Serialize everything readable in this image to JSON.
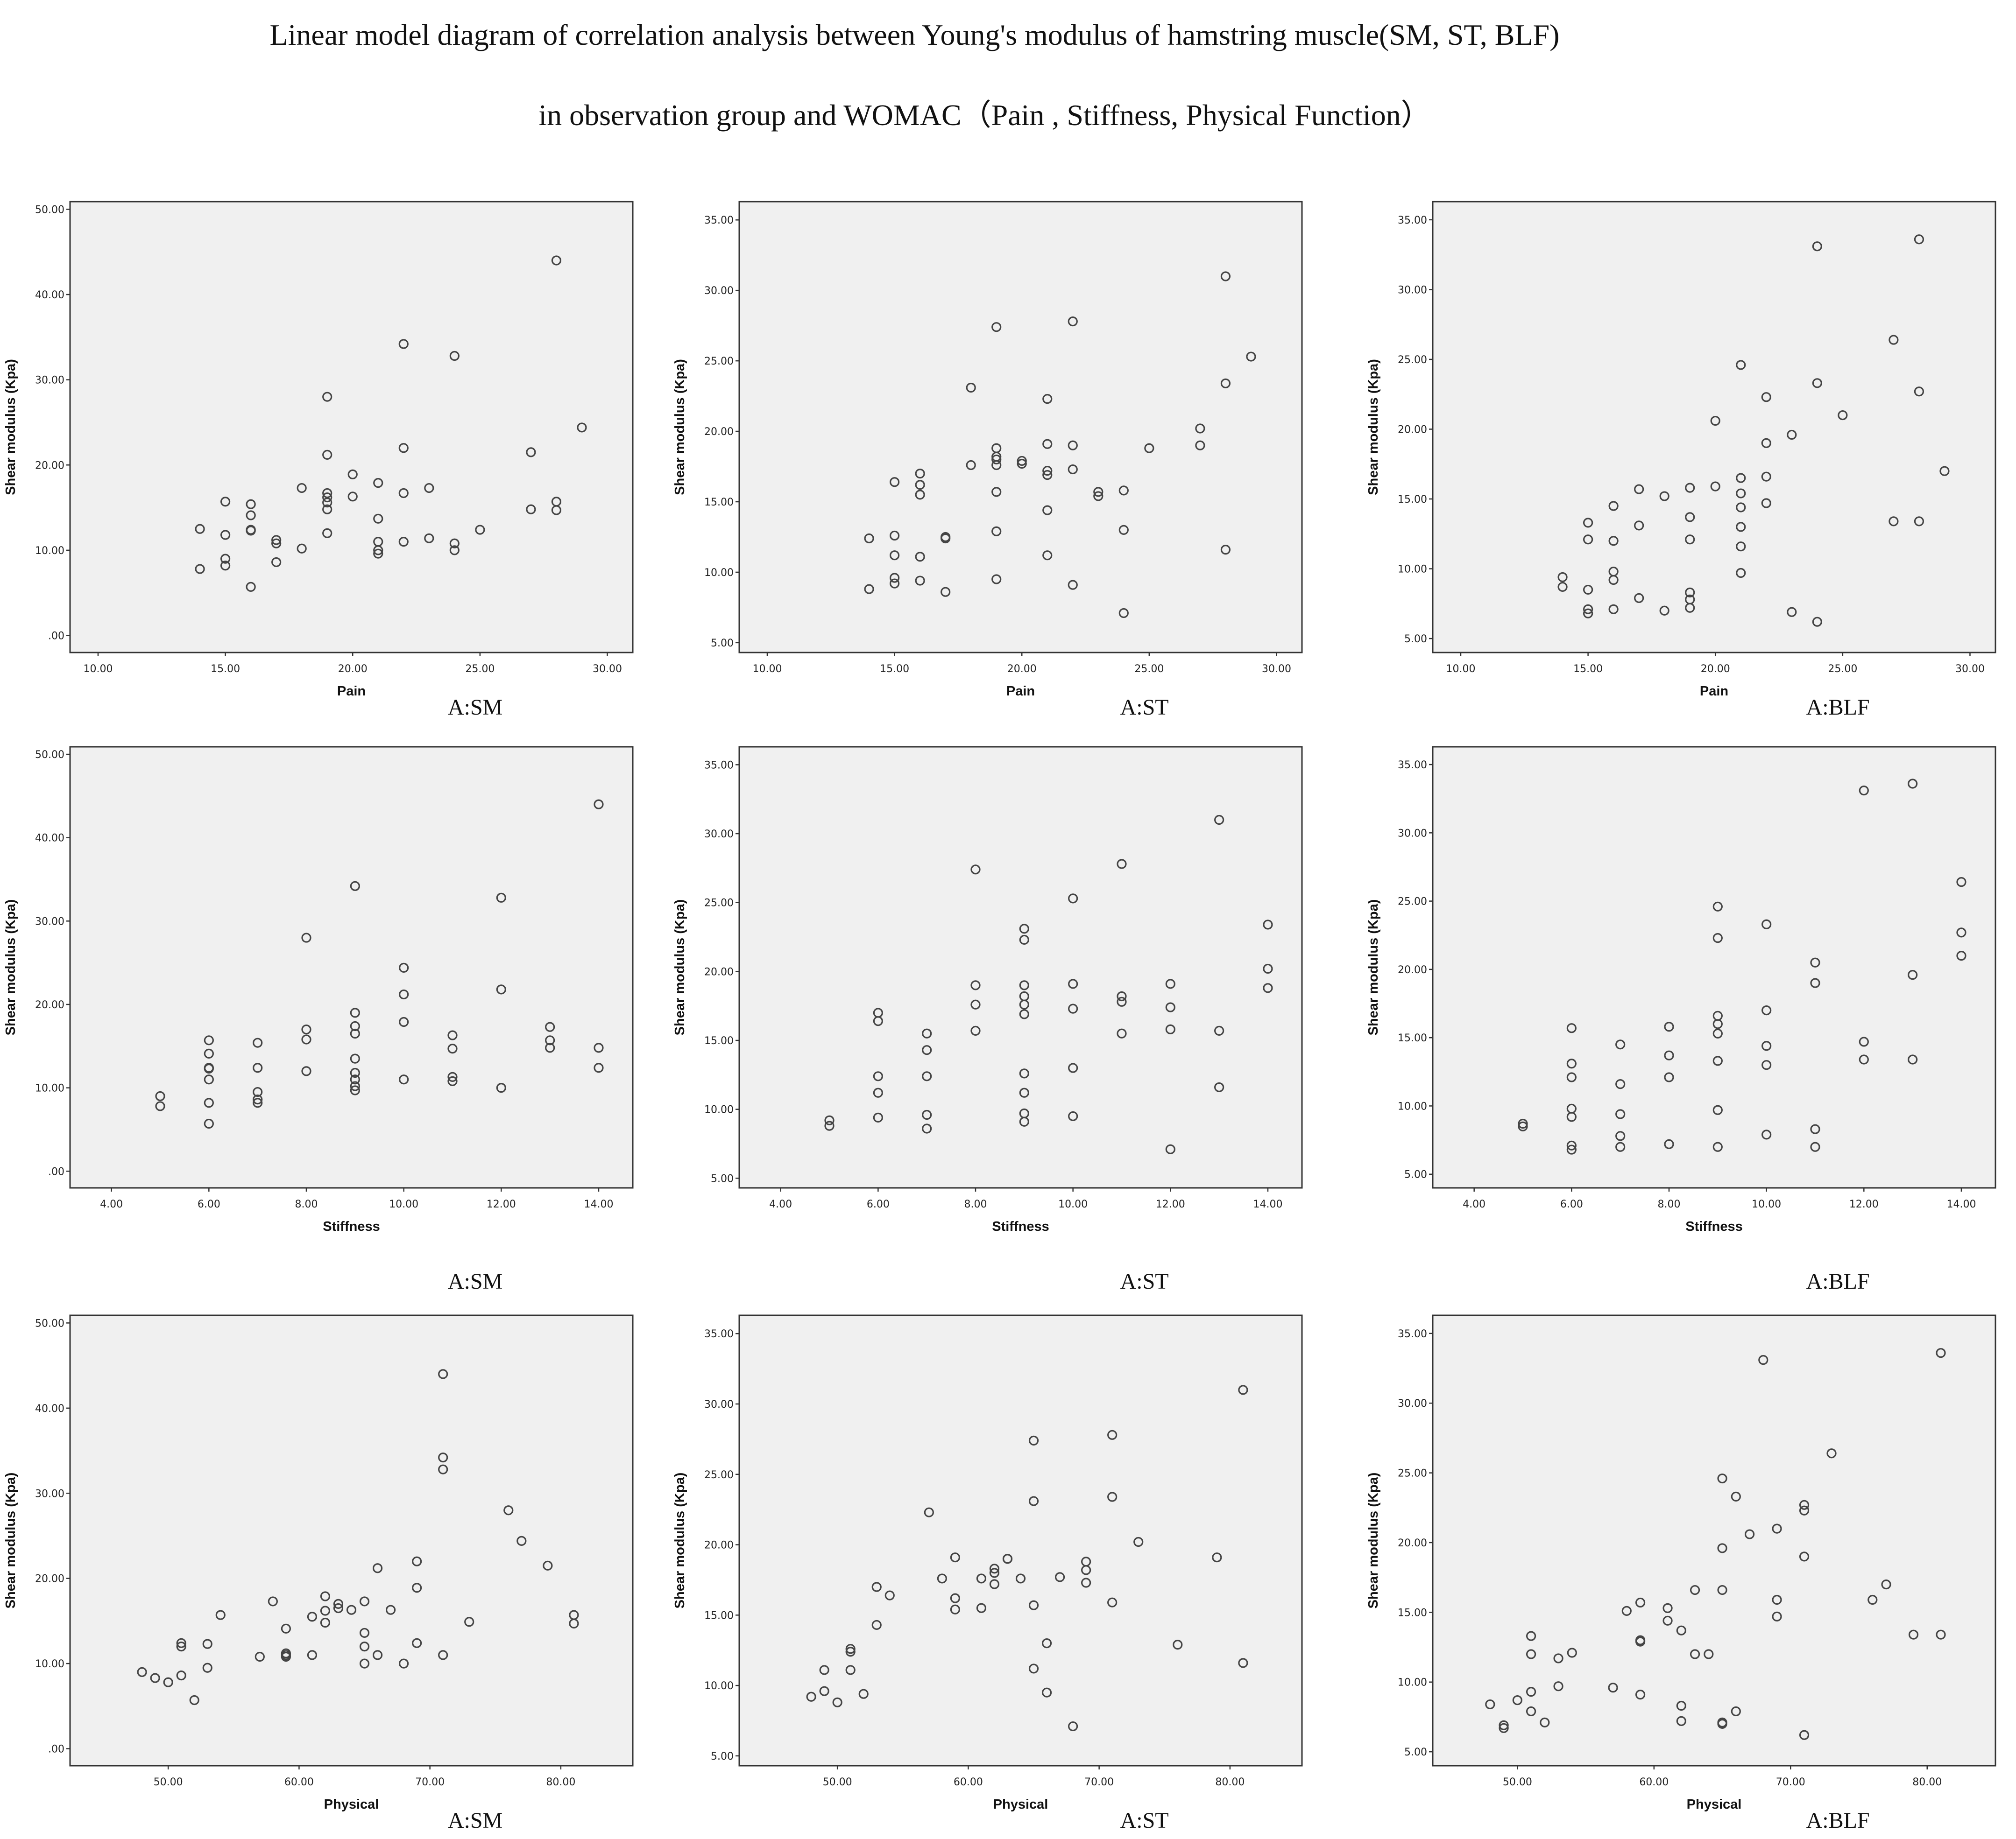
{
  "figure": {
    "title_line1": "Linear model diagram of correlation analysis between Young's modulus of hamstring muscle(SM, ST, BLF)",
    "title_line2": "in observation group and WOMAC（Pain , Stiffness, Physical Function）"
  },
  "chart_data": [
    {
      "type": "scatter",
      "id": "pain-sm",
      "caption": "A:SM",
      "xlabel": "Pain",
      "ylabel": "Shear modulus (Kpa)",
      "xlim": [
        8.9,
        31
      ],
      "ylim": [
        -2,
        50.9
      ],
      "xticks": [
        "10.00",
        "15.00",
        "20.00",
        "25.00",
        "30.00"
      ],
      "yticks": [
        ".00",
        "10.00",
        "20.00",
        "30.00",
        "40.00",
        "50.00"
      ],
      "x": [
        14,
        14,
        15,
        15,
        15,
        15,
        16,
        16,
        16,
        16,
        16,
        17,
        17,
        17,
        18,
        18,
        19,
        19,
        19,
        19,
        19,
        19,
        19,
        20,
        20,
        21,
        21,
        21,
        21,
        21,
        22,
        22,
        22,
        22,
        23,
        23,
        24,
        24,
        24,
        25,
        27,
        27,
        28,
        28,
        28,
        29
      ],
      "y": [
        12.5,
        7.8,
        15.7,
        11.8,
        9.0,
        8.2,
        15.4,
        14.1,
        12.4,
        12.3,
        5.7,
        11.2,
        10.8,
        8.6,
        17.3,
        10.2,
        28.0,
        21.2,
        16.7,
        16.2,
        15.6,
        14.8,
        12.0,
        18.9,
        16.3,
        17.9,
        13.7,
        11.0,
        10.0,
        9.6,
        34.2,
        22.0,
        16.7,
        11.0,
        17.3,
        11.4,
        32.8,
        10.8,
        10.0,
        12.4,
        21.5,
        14.8,
        44.0,
        15.7,
        14.7,
        24.4
      ]
    },
    {
      "type": "scatter",
      "id": "pain-st",
      "caption": "A:ST",
      "xlabel": "Pain",
      "ylabel": "Shear modulus (Kpa)",
      "xlim": [
        8.9,
        31
      ],
      "ylim": [
        4.3,
        36.3
      ],
      "xticks": [
        "10.00",
        "15.00",
        "20.00",
        "25.00",
        "30.00"
      ],
      "yticks": [
        "5.00",
        "10.00",
        "15.00",
        "20.00",
        "25.00",
        "30.00",
        "35.00"
      ],
      "x": [
        14,
        14,
        15,
        15,
        15,
        15,
        15,
        16,
        16,
        16,
        16,
        16,
        17,
        17,
        17,
        18,
        18,
        19,
        19,
        19,
        19,
        19,
        19,
        19,
        19,
        20,
        20,
        21,
        21,
        21,
        21,
        21,
        21,
        22,
        22,
        22,
        22,
        23,
        23,
        24,
        24,
        24,
        25,
        27,
        27,
        28,
        28,
        28,
        29
      ],
      "y": [
        12.4,
        8.8,
        16.4,
        12.6,
        11.2,
        9.6,
        9.2,
        17.0,
        16.2,
        15.5,
        11.1,
        9.4,
        12.5,
        12.4,
        8.6,
        23.1,
        17.6,
        27.4,
        18.8,
        18.2,
        17.6,
        15.7,
        12.9,
        9.5,
        18.0,
        17.9,
        17.7,
        22.3,
        19.1,
        17.2,
        16.9,
        14.4,
        11.2,
        27.8,
        19.0,
        17.3,
        9.1,
        15.7,
        15.4,
        15.8,
        13.0,
        7.1,
        18.8,
        20.2,
        19.0,
        31.0,
        23.4,
        11.6,
        25.3
      ]
    },
    {
      "type": "scatter",
      "id": "pain-blf",
      "caption": "A:BLF",
      "xlabel": "Pain",
      "ylabel": "Shear modulus (Kpa)",
      "xlim": [
        8.9,
        31
      ],
      "ylim": [
        4.0,
        36.3
      ],
      "xticks": [
        "10.00",
        "15.00",
        "20.00",
        "25.00",
        "30.00"
      ],
      "yticks": [
        "5.00",
        "10.00",
        "15.00",
        "20.00",
        "25.00",
        "30.00",
        "35.00"
      ],
      "x": [
        14,
        14,
        15,
        15,
        15,
        15,
        15,
        16,
        16,
        16,
        16,
        16,
        17,
        17,
        17,
        18,
        18,
        19,
        19,
        19,
        19,
        19,
        19,
        20,
        20,
        21,
        21,
        21,
        21,
        21,
        21,
        21,
        22,
        22,
        22,
        22,
        23,
        23,
        24,
        24,
        24,
        25,
        27,
        27,
        28,
        28,
        28,
        29
      ],
      "y": [
        9.4,
        8.7,
        13.3,
        12.1,
        8.5,
        7.1,
        6.8,
        14.5,
        12.0,
        9.8,
        9.2,
        7.1,
        15.7,
        13.1,
        7.9,
        15.2,
        7.0,
        15.8,
        13.7,
        12.1,
        8.3,
        7.8,
        7.2,
        20.6,
        15.9,
        24.6,
        16.5,
        15.4,
        14.4,
        13.0,
        11.6,
        9.7,
        22.3,
        19.0,
        16.6,
        14.7,
        19.6,
        6.9,
        33.1,
        23.3,
        6.2,
        21.0,
        26.4,
        13.4,
        33.6,
        22.7,
        13.4,
        17.0
      ]
    },
    {
      "type": "scatter",
      "id": "stiff-sm",
      "caption": "A:SM",
      "xlabel": "Stiffness",
      "ylabel": "Shear modulus (Kpa)",
      "xlim": [
        3.15,
        14.7
      ],
      "ylim": [
        -2,
        50.9
      ],
      "xticks": [
        "4.00",
        "6.00",
        "8.00",
        "10.00",
        "12.00",
        "14.00"
      ],
      "yticks": [
        ".00",
        "10.00",
        "20.00",
        "30.00",
        "40.00",
        "50.00"
      ],
      "x": [
        5,
        5,
        6,
        6,
        6,
        6,
        6,
        6,
        6,
        7,
        7,
        7,
        7,
        7,
        8,
        8,
        8,
        8,
        9,
        9,
        9,
        9,
        9,
        9,
        9,
        9,
        9,
        10,
        10,
        10,
        10,
        11,
        11,
        11,
        11,
        12,
        12,
        12,
        13,
        13,
        13,
        14,
        14,
        14
      ],
      "y": [
        9.0,
        7.8,
        15.7,
        14.1,
        12.4,
        12.3,
        11.0,
        8.2,
        5.7,
        15.4,
        12.4,
        9.5,
        8.6,
        8.2,
        28.0,
        17.0,
        15.8,
        12.0,
        34.2,
        19.0,
        17.4,
        16.5,
        13.5,
        11.8,
        11.0,
        10.2,
        9.7,
        24.4,
        21.2,
        17.9,
        11.0,
        16.3,
        14.7,
        11.3,
        10.8,
        32.8,
        21.8,
        10.0,
        17.3,
        15.7,
        14.8,
        44.0,
        14.8,
        12.4
      ]
    },
    {
      "type": "scatter",
      "id": "stiff-st",
      "caption": "A:ST",
      "xlabel": "Stiffness",
      "ylabel": "Shear modulus (Kpa)",
      "xlim": [
        3.15,
        14.7
      ],
      "ylim": [
        4.3,
        36.3
      ],
      "xticks": [
        "4.00",
        "6.00",
        "8.00",
        "10.00",
        "12.00",
        "14.00"
      ],
      "yticks": [
        "5.00",
        "10.00",
        "15.00",
        "20.00",
        "25.00",
        "30.00",
        "35.00"
      ],
      "x": [
        5,
        5,
        6,
        6,
        6,
        6,
        6,
        7,
        7,
        7,
        7,
        7,
        8,
        8,
        8,
        8,
        9,
        9,
        9,
        9,
        9,
        9,
        9,
        9,
        9,
        9,
        10,
        10,
        10,
        10,
        10,
        11,
        11,
        11,
        11,
        12,
        12,
        12,
        12,
        13,
        13,
        13,
        14,
        14,
        14
      ],
      "y": [
        9.2,
        8.8,
        17.0,
        16.4,
        12.4,
        11.2,
        9.4,
        15.5,
        14.3,
        12.4,
        9.6,
        8.6,
        27.4,
        19.0,
        17.6,
        15.7,
        23.1,
        22.3,
        19.0,
        18.2,
        17.6,
        16.9,
        12.6,
        11.2,
        9.7,
        9.1,
        25.3,
        19.1,
        17.3,
        13.0,
        9.5,
        27.8,
        18.2,
        17.8,
        15.5,
        19.1,
        17.4,
        15.8,
        7.1,
        31.0,
        15.7,
        11.6,
        23.4,
        20.2,
        18.8
      ]
    },
    {
      "type": "scatter",
      "id": "stiff-blf",
      "caption": "A:BLF",
      "xlabel": "Stiffness",
      "ylabel": "Shear modulus (Kpa)",
      "xlim": [
        3.15,
        14.7
      ],
      "ylim": [
        4.0,
        36.3
      ],
      "xticks": [
        "4.00",
        "6.00",
        "8.00",
        "10.00",
        "12.00",
        "14.00"
      ],
      "yticks": [
        "5.00",
        "10.00",
        "15.00",
        "20.00",
        "25.00",
        "30.00",
        "35.00"
      ],
      "x": [
        5,
        5,
        6,
        6,
        6,
        6,
        6,
        6,
        6,
        7,
        7,
        7,
        7,
        7,
        8,
        8,
        8,
        8,
        9,
        9,
        9,
        9,
        9,
        9,
        9,
        9,
        10,
        10,
        10,
        10,
        10,
        11,
        11,
        11,
        11,
        12,
        12,
        12,
        13,
        13,
        13,
        14,
        14,
        14
      ],
      "y": [
        8.7,
        8.5,
        15.7,
        13.1,
        12.1,
        9.8,
        9.2,
        7.1,
        6.8,
        14.5,
        11.6,
        9.4,
        7.8,
        7.0,
        15.8,
        13.7,
        12.1,
        7.2,
        24.6,
        22.3,
        16.6,
        16.0,
        15.3,
        13.3,
        9.7,
        7.0,
        23.3,
        17.0,
        14.4,
        13.0,
        7.9,
        20.5,
        19.0,
        8.3,
        7.0,
        33.1,
        14.7,
        13.4,
        33.6,
        19.6,
        13.4,
        26.4,
        22.7,
        21.0
      ]
    },
    {
      "type": "scatter",
      "id": "phys-sm",
      "caption": "A:SM",
      "xlabel": "Physical",
      "ylabel": "Shear modulus (Kpa)",
      "xlim": [
        42.5,
        85.5
      ],
      "ylim": [
        -2,
        50.9
      ],
      "xticks": [
        "50.00",
        "60.00",
        "70.00",
        "80.00"
      ],
      "yticks": [
        ".00",
        "10.00",
        "20.00",
        "30.00",
        "40.00",
        "50.00"
      ],
      "x": [
        48,
        49,
        50,
        51,
        51,
        51,
        52,
        53,
        53,
        54,
        57,
        58,
        59,
        59,
        59,
        59,
        61,
        61,
        62,
        62,
        62,
        63,
        63,
        64,
        65,
        65,
        65,
        65,
        66,
        66,
        67,
        68,
        69,
        69,
        69,
        71,
        71,
        71,
        71,
        73,
        76,
        77,
        79,
        81,
        81
      ],
      "y": [
        9.0,
        8.3,
        7.8,
        12.4,
        12.0,
        8.6,
        5.7,
        12.3,
        9.5,
        15.7,
        10.8,
        17.3,
        14.1,
        11.2,
        11.0,
        10.8,
        15.5,
        11.0,
        17.9,
        16.2,
        14.8,
        17.0,
        16.5,
        16.3,
        17.3,
        13.6,
        12.0,
        10.0,
        21.2,
        11.0,
        16.3,
        10.0,
        22.0,
        18.9,
        12.4,
        44.0,
        34.2,
        32.8,
        11.0,
        14.9,
        28.0,
        24.4,
        21.5,
        15.7,
        14.7
      ]
    },
    {
      "type": "scatter",
      "id": "phys-st",
      "caption": "A:ST",
      "xlabel": "Physical",
      "ylabel": "Shear modulus (Kpa)",
      "xlim": [
        42.5,
        85.5
      ],
      "ylim": [
        4.3,
        36.3
      ],
      "xticks": [
        "50.00",
        "60.00",
        "70.00",
        "80.00"
      ],
      "yticks": [
        "5.00",
        "10.00",
        "15.00",
        "20.00",
        "25.00",
        "30.00",
        "35.00"
      ],
      "x": [
        48,
        49,
        49,
        50,
        51,
        51,
        51,
        52,
        53,
        53,
        54,
        57,
        58,
        59,
        59,
        59,
        61,
        61,
        62,
        62,
        62,
        63,
        63,
        64,
        65,
        65,
        65,
        65,
        66,
        66,
        67,
        68,
        69,
        69,
        69,
        71,
        71,
        71,
        73,
        76,
        79,
        81,
        81
      ],
      "y": [
        9.2,
        11.1,
        9.6,
        8.8,
        12.6,
        12.4,
        11.1,
        9.4,
        17.0,
        14.3,
        16.4,
        22.3,
        17.6,
        19.1,
        16.2,
        15.4,
        17.6,
        15.5,
        18.3,
        18.0,
        17.2,
        19.0,
        19.0,
        17.6,
        27.4,
        23.1,
        15.7,
        11.2,
        13.0,
        9.5,
        17.7,
        7.1,
        18.8,
        18.2,
        17.3,
        27.8,
        23.4,
        15.9,
        20.2,
        12.9,
        19.1,
        31.0,
        11.6
      ]
    },
    {
      "type": "scatter",
      "id": "phys-blf",
      "caption": "A:BLF",
      "xlabel": "Physical",
      "ylabel": "Shear modulus (Kpa)",
      "xlim": [
        43.8,
        85.0
      ],
      "ylim": [
        4.0,
        36.3
      ],
      "xticks": [
        "50.00",
        "60.00",
        "70.00",
        "80.00"
      ],
      "yticks": [
        "5.00",
        "10.00",
        "15.00",
        "20.00",
        "25.00",
        "30.00",
        "35.00"
      ],
      "x": [
        48,
        49,
        49,
        50,
        51,
        51,
        51,
        51,
        52,
        53,
        53,
        54,
        57,
        58,
        59,
        59,
        59,
        59,
        61,
        61,
        62,
        62,
        62,
        63,
        63,
        64,
        65,
        65,
        65,
        65,
        65,
        66,
        66,
        67,
        68,
        69,
        69,
        69,
        71,
        71,
        71,
        71,
        73,
        76,
        77,
        79,
        81,
        81
      ],
      "y": [
        8.4,
        6.9,
        6.7,
        8.7,
        13.3,
        12.0,
        9.3,
        7.9,
        7.1,
        11.7,
        9.7,
        12.1,
        9.6,
        15.1,
        15.7,
        13.0,
        12.9,
        9.1,
        15.3,
        14.4,
        13.7,
        8.3,
        7.2,
        16.6,
        12.0,
        12.0,
        24.6,
        19.6,
        16.6,
        7.1,
        7.0,
        23.3,
        7.9,
        20.6,
        33.1,
        21.0,
        15.9,
        14.7,
        22.7,
        22.3,
        19.0,
        6.2,
        26.4,
        15.9,
        17.0,
        13.4,
        33.6,
        13.4
      ]
    }
  ]
}
